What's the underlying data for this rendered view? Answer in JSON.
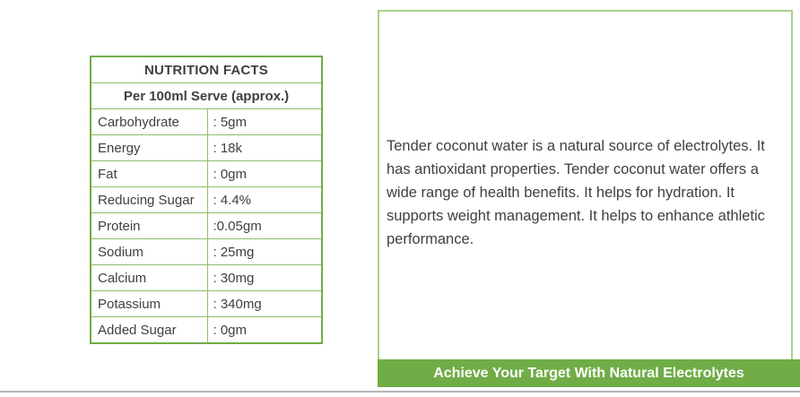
{
  "nutrition_table": {
    "title": "NUTRITION FACTS",
    "subtitle": "Per 100ml Serve (approx.)",
    "rows": [
      {
        "label": "Carbohydrate",
        "value": ": 5gm"
      },
      {
        "label": "Energy",
        "value": ": 18k"
      },
      {
        "label": "Fat",
        "value": ": 0gm"
      },
      {
        "label": "Reducing Sugar",
        "value": ": 4.4%"
      },
      {
        "label": "Protein",
        "value": ":0.05gm"
      },
      {
        "label": "Sodium",
        "value": ": 25mg"
      },
      {
        "label": "Calcium",
        "value": ": 30mg"
      },
      {
        "label": "Potassium",
        "value": ": 340mg"
      },
      {
        "label": "Added Sugar",
        "value": ": 0gm"
      }
    ]
  },
  "info_panel": {
    "description": "Tender coconut water is a natural source of electrolytes. It has antioxidant properties. Tender coconut water offers a wide range of health benefits. It helps for hydration. It supports weight management. It helps to enhance athletic performance.",
    "banner": "Achieve Your Target With Natural Electrolytes"
  },
  "colors": {
    "accent_green": "#70AD47",
    "table_border_green": "#6FAE45",
    "inner_border_green": "#8CBF6B",
    "panel_border_light_green": "#A9D18E",
    "text_dark": "#3F3F3F",
    "banner_text": "#FFFFFF",
    "divider_gray": "#B5B5B5"
  }
}
